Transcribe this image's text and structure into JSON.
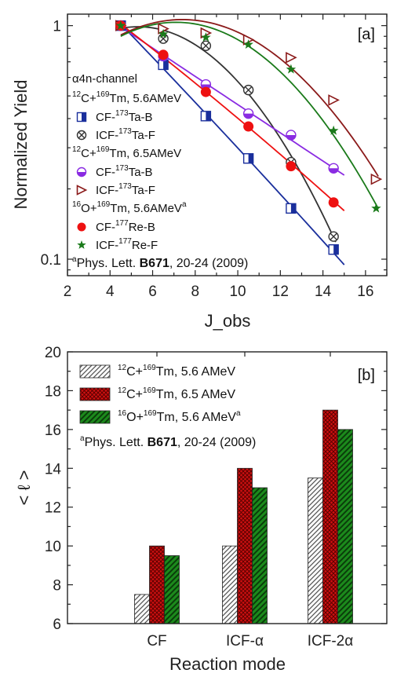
{
  "chart_data": [
    {
      "type": "scatter",
      "panel_label": "[a]",
      "xlabel": "J_obs",
      "ylabel": "Normalized Yield",
      "xlim": [
        2,
        17
      ],
      "ylim": [
        0.085,
        1.12
      ],
      "y_scale": "log",
      "x_ticks": [
        "2",
        "4",
        "6",
        "8",
        "10",
        "12",
        "14",
        "16"
      ],
      "y_ticks": [
        "0.1",
        "1"
      ],
      "legend_position": "left",
      "legend": {
        "channel": "α4n-channel",
        "groups": [
          {
            "pre1": "12",
            "main1": "C+",
            "pre2": "169",
            "main2": "Tm, 5.6AMeV",
            "sup": "",
            "entries": [
              {
                "series_index": 0,
                "prefix": "CF-",
                "mass": "173",
                "suffix": "Ta-B"
              },
              {
                "series_index": 1,
                "prefix": "ICF-",
                "mass": "173",
                "suffix": "Ta-F"
              }
            ]
          },
          {
            "pre1": "12",
            "main1": "C+",
            "pre2": "169",
            "main2": "Tm, 6.5AMeV",
            "sup": "",
            "entries": [
              {
                "series_index": 2,
                "prefix": "CF-",
                "mass": "173",
                "suffix": "Ta-B"
              },
              {
                "series_index": 3,
                "prefix": "ICF-",
                "mass": "173",
                "suffix": "Ta-F"
              }
            ]
          },
          {
            "pre1": "16",
            "main1": "O+",
            "pre2": "169",
            "main2": "Tm, 5.6AMeV",
            "sup": "a",
            "entries": [
              {
                "series_index": 4,
                "prefix": "CF-",
                "mass": "177",
                "suffix": "Re-B"
              },
              {
                "series_index": 5,
                "prefix": "ICF-",
                "mass": "177",
                "suffix": "Re-F"
              }
            ]
          }
        ]
      },
      "reference": {
        "sup": "a",
        "text": "Phys. Lett. ",
        "bold": "B671",
        "rest": ", 20-24 (2009)"
      },
      "series": [
        {
          "marker": "half-square",
          "color": "#1a2f9c",
          "x": [
            4.5,
            6.5,
            8.5,
            10.5,
            12.5,
            14.5
          ],
          "y": [
            1.0,
            0.68,
            0.41,
            0.27,
            0.165,
            0.11
          ],
          "fit_x": [
            4.5,
            15
          ],
          "fit_y": [
            1.0,
            0.093
          ]
        },
        {
          "marker": "circle-x",
          "color": "#333333",
          "x": [
            4.5,
            6.5,
            8.5,
            10.5,
            12.5,
            14.5
          ],
          "y": [
            1.0,
            0.88,
            0.82,
            0.53,
            0.26,
            0.125
          ],
          "fit_x": [
            4.5,
            14.6
          ],
          "fit_y": [
            1.0,
            0.12
          ]
        },
        {
          "marker": "half-circle",
          "color": "#8a2be2",
          "x": [
            4.5,
            6.5,
            8.5,
            10.5,
            12.5,
            14.5
          ],
          "y": [
            1.0,
            0.74,
            0.56,
            0.42,
            0.34,
            0.245
          ],
          "fit_x": [
            4.5,
            15
          ],
          "fit_y": [
            1.0,
            0.225
          ]
        },
        {
          "marker": "triangle-right",
          "color": "#8b1a1a",
          "x": [
            4.5,
            6.5,
            8.5,
            10.5,
            12.5,
            14.5,
            16.5
          ],
          "y": [
            1.0,
            0.97,
            0.93,
            0.87,
            0.73,
            0.48,
            0.22
          ],
          "fit_x": [
            4.5,
            16.6
          ],
          "fit_y": [
            1.0,
            0.215
          ]
        },
        {
          "marker": "filled-circle",
          "color": "#ee1111",
          "x": [
            4.5,
            6.5,
            8.5,
            10.5,
            12.5,
            14.5
          ],
          "y": [
            1.0,
            0.75,
            0.52,
            0.37,
            0.25,
            0.175
          ],
          "fit_x": [
            4.5,
            15
          ],
          "fit_y": [
            1.0,
            0.165
          ]
        },
        {
          "marker": "star",
          "color": "#1a7a1a",
          "x": [
            4.5,
            6.5,
            8.5,
            10.5,
            12.5,
            14.5,
            16.5
          ],
          "y": [
            1.0,
            0.92,
            0.89,
            0.83,
            0.65,
            0.355,
            0.165
          ],
          "fit_x": [
            4.5,
            16.6
          ],
          "fit_y": [
            1.0,
            0.158
          ]
        }
      ]
    },
    {
      "type": "bar",
      "panel_label": "[b]",
      "xlabel": "Reaction mode",
      "ylabel": "< ℓ >",
      "categories": [
        "CF",
        "ICF-α",
        "ICF-2α"
      ],
      "ylim": [
        6,
        20
      ],
      "y_ticks": [
        "6",
        "8",
        "10",
        "12",
        "14",
        "16",
        "18",
        "20"
      ],
      "legend_position": "top-left",
      "series": [
        {
          "pattern": "hatch-gray",
          "values": [
            7.5,
            10,
            13.5
          ],
          "legend": {
            "pre1": "12",
            "main1": "C+",
            "pre2": "169",
            "main2": "Tm, 5.6 AMeV",
            "sup": ""
          }
        },
        {
          "pattern": "crosshatch-red",
          "values": [
            10,
            14,
            17
          ],
          "legend": {
            "pre1": "12",
            "main1": "C+",
            "pre2": "169",
            "main2": "Tm, 6.5 AMeV",
            "sup": ""
          }
        },
        {
          "pattern": "hatch-green",
          "values": [
            9.5,
            13,
            16
          ],
          "legend": {
            "pre1": "16",
            "main1": "O+",
            "pre2": "169",
            "main2": "Tm, 5.6 AMeV",
            "sup": "a"
          }
        }
      ],
      "reference": {
        "sup": "a",
        "text": "Phys. Lett. ",
        "bold": "B671",
        "rest": ", 20-24 (2009)"
      }
    }
  ]
}
